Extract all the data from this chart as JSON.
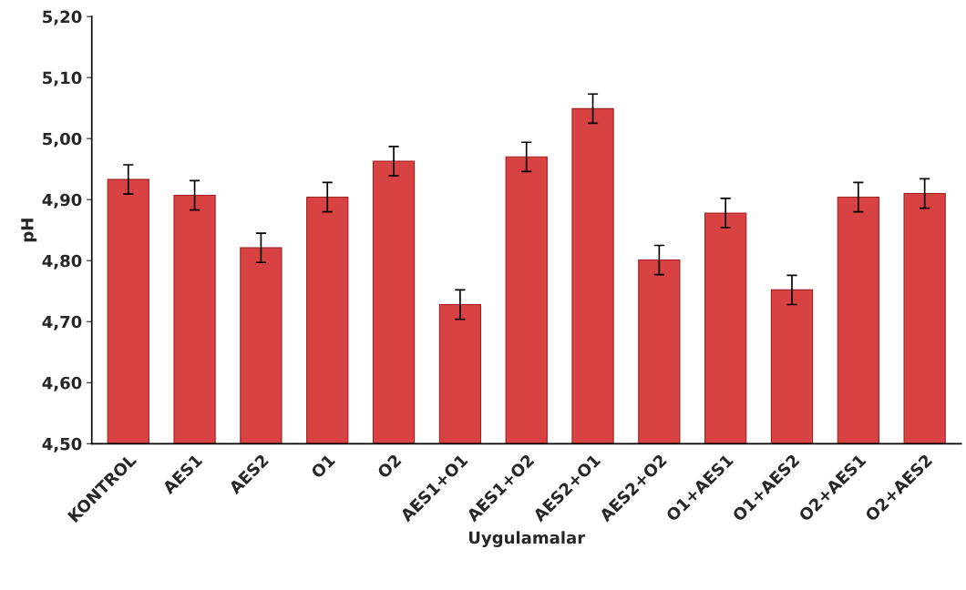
{
  "chart_data": {
    "type": "bar",
    "xlabel": "Uygulamalar",
    "ylabel": "pH",
    "categories": [
      "KONTROL",
      "AES1",
      "AES2",
      "O1",
      "O2",
      "AES1+O1",
      "AES1+O2",
      "AES2+O1",
      "AES2+O2",
      "O1+AES1",
      "O1+AES2",
      "O2+AES1",
      "O2+AES2"
    ],
    "values": [
      4.933,
      4.907,
      4.821,
      4.904,
      4.963,
      4.728,
      4.97,
      5.049,
      4.801,
      4.878,
      4.752,
      4.904,
      4.91
    ],
    "errors": [
      0.024,
      0.024,
      0.024,
      0.024,
      0.024,
      0.024,
      0.024,
      0.024,
      0.024,
      0.024,
      0.024,
      0.024,
      0.024
    ],
    "color": "#d94242",
    "ylim": [
      4.5,
      5.2
    ],
    "yticks": [
      {
        "value": 4.5,
        "label": "4,50"
      },
      {
        "value": 4.6,
        "label": "4,60"
      },
      {
        "value": 4.7,
        "label": "4,70"
      },
      {
        "value": 4.8,
        "label": "4,80"
      },
      {
        "value": 4.9,
        "label": "4,90"
      },
      {
        "value": 5.0,
        "label": "5,00"
      },
      {
        "value": 5.1,
        "label": "5,10"
      },
      {
        "value": 5.2,
        "label": "5,20"
      }
    ],
    "grid": false,
    "legend": false
  }
}
